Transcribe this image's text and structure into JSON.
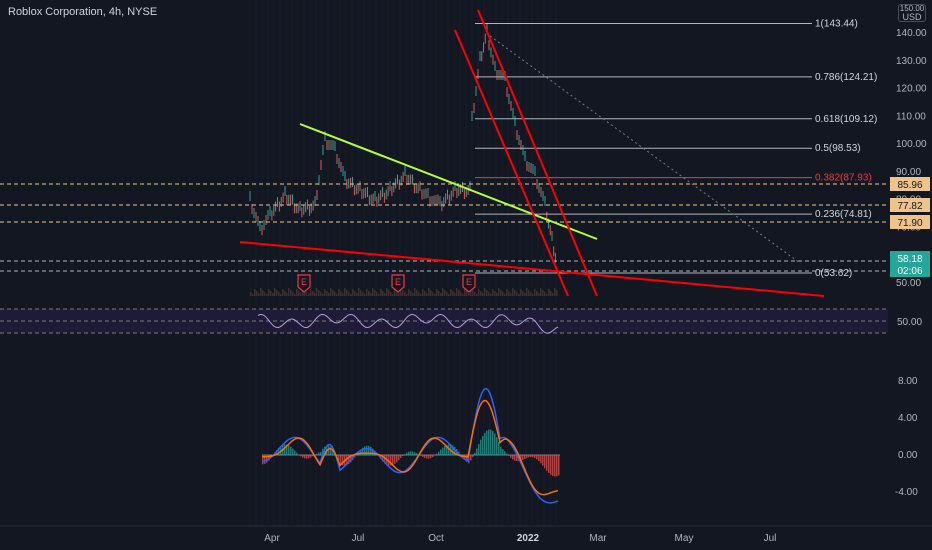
{
  "header": {
    "symbol_title": "Roblox Corporation, 4h, NYSE",
    "currency": "USD",
    "currency_top": "150.00"
  },
  "price_axis": {
    "ticks": [
      "140.00",
      "130.00",
      "120.00",
      "110.00",
      "100.00",
      "90.00",
      "80.00",
      "70.00",
      "60.00",
      "50.00"
    ]
  },
  "price_badges": {
    "level_1": "85.96",
    "level_2": "77.82",
    "level_3": "71.90",
    "last_price": "58.18",
    "countdown": "02:06"
  },
  "fibonacci": [
    {
      "label": "1(143.44)",
      "value": 143.44
    },
    {
      "label": "0.786(124.21)",
      "value": 124.21
    },
    {
      "label": "0.618(109.12)",
      "value": 109.12
    },
    {
      "label": "0.5(98.53)",
      "value": 98.53
    },
    {
      "label": "0.382(87.93)",
      "value": 87.93
    },
    {
      "label": "0.236(74.81)",
      "value": 74.81
    },
    {
      "label": "0(53.62)",
      "value": 53.62
    }
  ],
  "earnings_marker": "E",
  "rsi_axis": {
    "ticks": [
      "50.00"
    ]
  },
  "macd_axis": {
    "ticks": [
      "8.00",
      "4.00",
      "0.00",
      "-4.00"
    ]
  },
  "time_axis": {
    "ticks": [
      "Apr",
      "Jul",
      "Oct",
      "2022",
      "Mar",
      "May",
      "Jul"
    ]
  },
  "colors": {
    "background": "#131722",
    "fib_red": "#f23645",
    "trend_red": "#ff0000",
    "trend_green": "#b3ff3a",
    "badge_orange": "#f0c389",
    "last_price_green": "#26a69a",
    "macd_blue": "#2962ff",
    "macd_orange": "#ff6d00",
    "rsi_purple": "#b39ddb"
  },
  "icons": [
    "earnings-icon"
  ]
}
